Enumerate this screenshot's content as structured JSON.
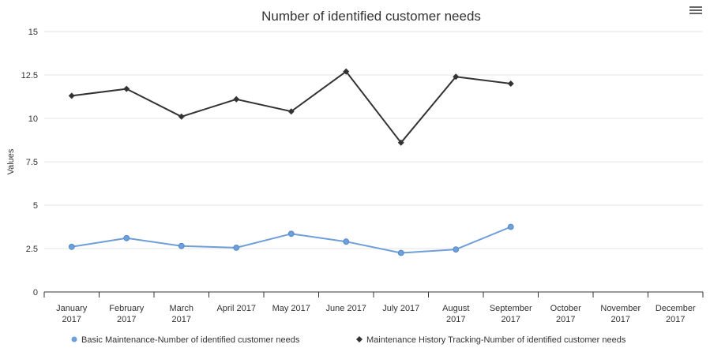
{
  "chart_data": {
    "type": "line",
    "title": "Number of identified customer needs",
    "ylabel": "Values",
    "xlabel": "",
    "ylim": [
      0,
      15
    ],
    "yticks": [
      0,
      2.5,
      5,
      7.5,
      10,
      12.5,
      15
    ],
    "ytick_labels": [
      "0",
      "2.5",
      "5",
      "7.5",
      "10",
      "12.5",
      "15"
    ],
    "categories": [
      [
        "January",
        "2017"
      ],
      [
        "February",
        "2017"
      ],
      [
        "March",
        "2017"
      ],
      [
        "April 2017"
      ],
      [
        "May 2017"
      ],
      [
        "June 2017"
      ],
      [
        "July 2017"
      ],
      [
        "August",
        "2017"
      ],
      [
        "September",
        "2017"
      ],
      [
        "October",
        "2017"
      ],
      [
        "November",
        "2017"
      ],
      [
        "December",
        "2017"
      ]
    ],
    "grid": "horizontal",
    "legend_position": "bottom",
    "series": [
      {
        "name": "Basic Maintenance-Number of identified customer needs",
        "color": "#6f9fd8",
        "marker": "circle",
        "values": [
          2.6,
          3.1,
          2.65,
          2.55,
          3.35,
          2.9,
          2.25,
          2.45,
          3.75,
          null,
          null,
          null
        ]
      },
      {
        "name": "Maintenance History Tracking-Number of identified customer needs",
        "color": "#333333",
        "marker": "diamond",
        "values": [
          11.3,
          11.7,
          10.1,
          11.1,
          10.4,
          12.7,
          8.6,
          12.4,
          12.0,
          null,
          null,
          null
        ]
      }
    ]
  },
  "menu_icon": "hamburger-menu-icon"
}
